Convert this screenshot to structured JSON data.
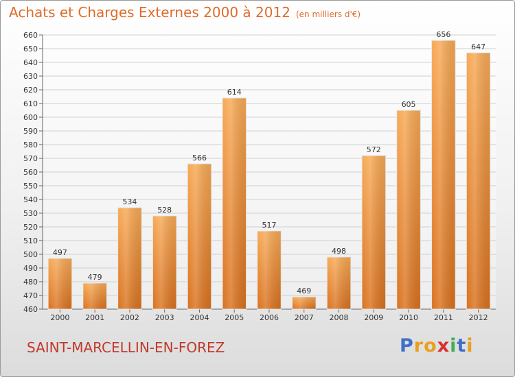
{
  "header": {
    "title": "Achats et Charges Externes 2000 à 2012",
    "unit": "(en milliers d'€)"
  },
  "footer": {
    "commune": "SAINT-MARCELLIN-EN-FOREZ",
    "logo": [
      "P",
      "r",
      "o",
      "x",
      "i",
      "t",
      "i"
    ],
    "logo_colors": [
      "#3f6fc9",
      "#e8a020",
      "#e8a020",
      "#d83030",
      "#3fb04f",
      "#3f6fc9",
      "#e8a020"
    ]
  },
  "chart_data": {
    "type": "bar",
    "categories": [
      "2000",
      "2001",
      "2002",
      "2003",
      "2004",
      "2005",
      "2006",
      "2007",
      "2008",
      "2009",
      "2010",
      "2011",
      "2012"
    ],
    "values": [
      497,
      479,
      534,
      528,
      566,
      614,
      517,
      469,
      498,
      572,
      605,
      656,
      647
    ],
    "ylim": [
      460,
      660
    ],
    "yticks": [
      460,
      470,
      480,
      490,
      500,
      510,
      520,
      530,
      540,
      550,
      560,
      570,
      580,
      590,
      600,
      610,
      620,
      630,
      640,
      650,
      660
    ],
    "grid": true,
    "bar_color": "#f0923a",
    "data_labels": true
  }
}
